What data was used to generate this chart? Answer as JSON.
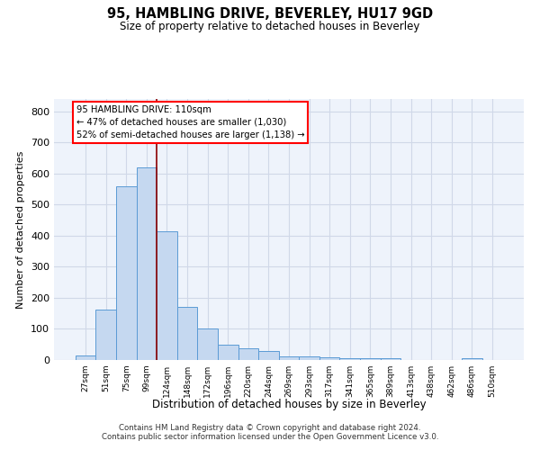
{
  "title_line1": "95, HAMBLING DRIVE, BEVERLEY, HU17 9GD",
  "title_line2": "Size of property relative to detached houses in Beverley",
  "xlabel": "Distribution of detached houses by size in Beverley",
  "ylabel": "Number of detached properties",
  "footnote": "Contains HM Land Registry data © Crown copyright and database right 2024.\nContains public sector information licensed under the Open Government Licence v3.0.",
  "bar_labels": [
    "27sqm",
    "51sqm",
    "75sqm",
    "99sqm",
    "124sqm",
    "148sqm",
    "172sqm",
    "196sqm",
    "220sqm",
    "244sqm",
    "269sqm",
    "293sqm",
    "317sqm",
    "341sqm",
    "365sqm",
    "389sqm",
    "413sqm",
    "438sqm",
    "462sqm",
    "486sqm",
    "510sqm"
  ],
  "bar_values": [
    15,
    163,
    560,
    620,
    413,
    170,
    101,
    50,
    38,
    30,
    12,
    12,
    8,
    5,
    5,
    5,
    0,
    0,
    0,
    6,
    0
  ],
  "bar_color": "#c5d8f0",
  "bar_edge_color": "#5b9bd5",
  "grid_color": "#d0d8e8",
  "background_color": "#eef3fb",
  "annotation_box_text": "95 HAMBLING DRIVE: 110sqm\n← 47% of detached houses are smaller (1,030)\n52% of semi-detached houses are larger (1,138) →",
  "annotation_box_color": "white",
  "annotation_box_edge_color": "red",
  "red_line_x": 3.5,
  "ylim": [
    0,
    840
  ],
  "yticks": [
    0,
    100,
    200,
    300,
    400,
    500,
    600,
    700,
    800
  ]
}
